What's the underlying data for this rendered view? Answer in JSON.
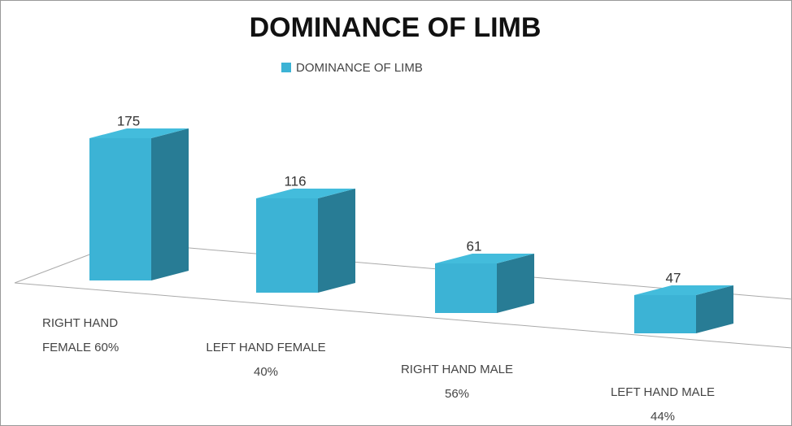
{
  "chart_data": {
    "type": "bar3d",
    "title": "DOMINANCE OF LIMB",
    "legend": "DOMINANCE OF LIMB",
    "categories": [
      [
        "RIGHT HAND",
        "FEMALE 60%"
      ],
      [
        "LEFT HAND FEMALE",
        "40%"
      ],
      [
        "RIGHT HAND MALE",
        "56%"
      ],
      [
        "LEFT HAND MALE",
        "44%"
      ]
    ],
    "values": [
      175,
      116,
      61,
      47
    ],
    "color": "#3cb3d5"
  }
}
